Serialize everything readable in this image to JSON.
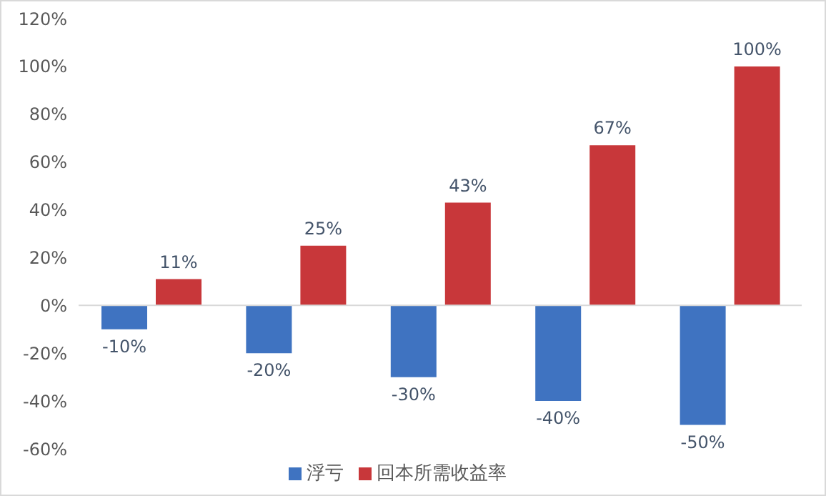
{
  "chart_data": {
    "type": "bar",
    "categories": [
      null,
      null,
      null,
      null,
      null
    ],
    "series": [
      {
        "name": "浮亏",
        "color": "#3f73c1",
        "values": [
          -10,
          -20,
          -30,
          -40,
          -50
        ],
        "value_labels": [
          "-10%",
          "-20%",
          "-30%",
          "-40%",
          "-50%"
        ]
      },
      {
        "name": "回本所需收益率",
        "color": "#c8373a",
        "values": [
          11,
          25,
          43,
          67,
          100
        ],
        "value_labels": [
          "11%",
          "25%",
          "43%",
          "67%",
          "100%"
        ]
      }
    ],
    "ylim": [
      -60,
      120
    ],
    "yticks": [
      {
        "value": -60,
        "label": "-60%"
      },
      {
        "value": -40,
        "label": "-40%"
      },
      {
        "value": -20,
        "label": "-20%"
      },
      {
        "value": 0,
        "label": "0%"
      },
      {
        "value": 20,
        "label": "20%"
      },
      {
        "value": 40,
        "label": "40%"
      },
      {
        "value": 60,
        "label": "60%"
      },
      {
        "value": 80,
        "label": "80%"
      },
      {
        "value": 100,
        "label": "100%"
      },
      {
        "value": 120,
        "label": "120%"
      }
    ],
    "ref_lines": [
      {
        "axis": "y",
        "value": 0,
        "color": "#d9d9d9"
      }
    ],
    "grid": false,
    "legend": "bottom"
  }
}
